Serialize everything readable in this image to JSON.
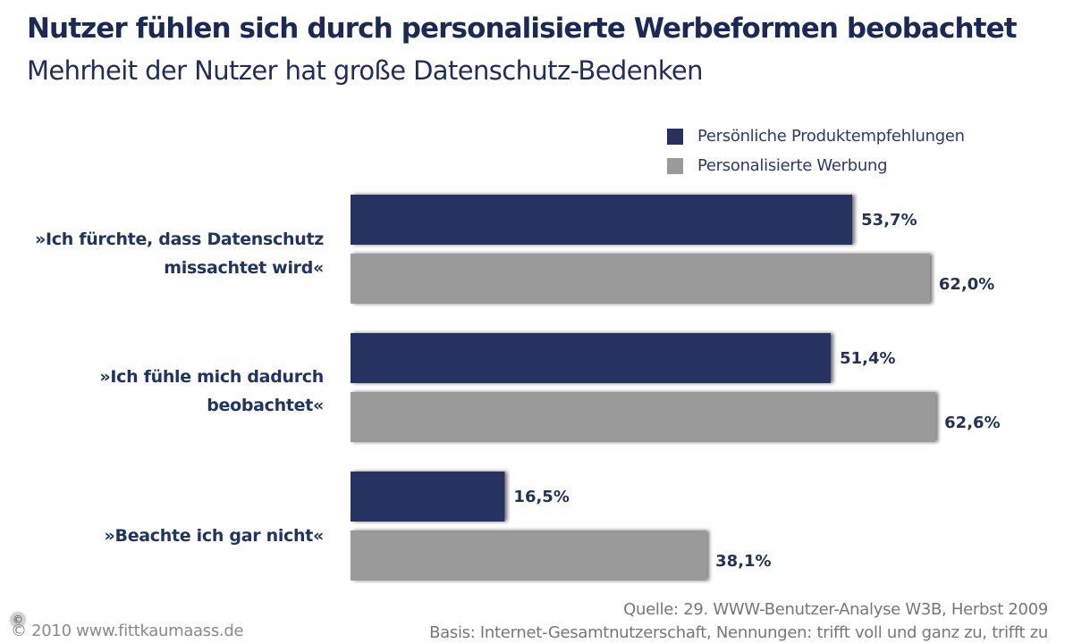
{
  "header": {
    "title": "Nutzer fühlen sich durch personalisierte Werbeformen beobachtet",
    "subtitle": "Mehrheit der Nutzer hat große Datenschutz-Bedenken"
  },
  "colors": {
    "series_1": "#28305f",
    "series_2": "#9a9a9a",
    "text_dark": "#1f3560"
  },
  "chart_data": {
    "type": "bar",
    "orientation": "horizontal",
    "title": "Nutzer fühlen sich durch personalisierte Werbeformen beobachtet",
    "subtitle": "Mehrheit der Nutzer hat große Datenschutz-Bedenken",
    "categories": [
      [
        "»Ich fürchte, dass Datenschutz",
        "missachtet wird«"
      ],
      [
        "»Ich fühle mich dadurch",
        "beobachtet«"
      ],
      [
        "»Beachte ich gar nicht«"
      ]
    ],
    "series": [
      {
        "name": "Persönliche Produktempfehlungen",
        "values": [
          53.7,
          51.4,
          16.5
        ],
        "labels": [
          "53,7%",
          "51,4%",
          "16,5%"
        ]
      },
      {
        "name": "Personalisierte Werbung",
        "values": [
          62.0,
          62.6,
          38.1
        ],
        "labels": [
          "62,0%",
          "62,6%",
          "38,1%"
        ]
      }
    ],
    "xlabel": "",
    "ylabel": "",
    "unit": "%",
    "xlim": [
      0,
      100
    ],
    "grid": false,
    "legend_position": "top-right"
  },
  "footer": {
    "copyright_badge": "©",
    "copyright": "© 2010 www.fittkaumaass.de",
    "source": "Quelle: 29. WWW-Benutzer-Analyse W3B, Herbst 2009",
    "basis": "Basis: Internet-Gesamtnutzerschaft, Nennungen: trifft voll und ganz zu, trifft zu"
  }
}
